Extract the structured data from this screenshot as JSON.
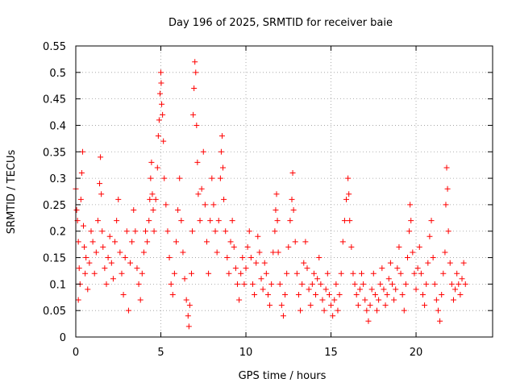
{
  "chart_data": {
    "type": "scatter",
    "title": "Day 196 of 2025, SRMTID for receiver baie",
    "xlabel": "GPS time / hours",
    "ylabel": "SRMTID / TECUs",
    "xlim": [
      0,
      24.5
    ],
    "ylim": [
      0,
      0.55
    ],
    "x_ticks": [
      0,
      5,
      10,
      15,
      20
    ],
    "y_ticks": [
      0,
      0.05,
      0.1,
      0.15,
      0.2,
      0.25,
      0.3,
      0.35,
      0.4,
      0.45,
      0.5,
      0.55
    ],
    "x_tick_labels": [
      "0",
      "5",
      "10",
      "15",
      "20"
    ],
    "y_tick_labels": [
      "0",
      "0.05",
      "0.1",
      "0.15",
      "0.2",
      "0.25",
      "0.3",
      "0.35",
      "0.4",
      "0.45",
      "0.5",
      "0.55"
    ],
    "grid": true,
    "marker": "+",
    "series": [
      {
        "name": "SRMTID",
        "color": "#ff0000",
        "points": [
          [
            0.0,
            0.28
          ],
          [
            0.05,
            0.24
          ],
          [
            0.1,
            0.22
          ],
          [
            0.15,
            0.07
          ],
          [
            0.15,
            0.18
          ],
          [
            0.2,
            0.13
          ],
          [
            0.25,
            0.1
          ],
          [
            0.3,
            0.26
          ],
          [
            0.35,
            0.31
          ],
          [
            0.4,
            0.35
          ],
          [
            0.45,
            0.21
          ],
          [
            0.5,
            0.17
          ],
          [
            0.55,
            0.12
          ],
          [
            0.6,
            0.15
          ],
          [
            0.7,
            0.09
          ],
          [
            0.8,
            0.14
          ],
          [
            0.9,
            0.2
          ],
          [
            1.0,
            0.18
          ],
          [
            1.1,
            0.12
          ],
          [
            1.2,
            0.16
          ],
          [
            1.3,
            0.22
          ],
          [
            1.4,
            0.29
          ],
          [
            1.45,
            0.34
          ],
          [
            1.5,
            0.27
          ],
          [
            1.55,
            0.2
          ],
          [
            1.6,
            0.17
          ],
          [
            1.7,
            0.13
          ],
          [
            1.8,
            0.1
          ],
          [
            1.9,
            0.15
          ],
          [
            2.0,
            0.19
          ],
          [
            2.1,
            0.14
          ],
          [
            2.2,
            0.11
          ],
          [
            2.3,
            0.18
          ],
          [
            2.4,
            0.22
          ],
          [
            2.5,
            0.26
          ],
          [
            2.6,
            0.16
          ],
          [
            2.7,
            0.12
          ],
          [
            2.8,
            0.08
          ],
          [
            2.9,
            0.15
          ],
          [
            3.0,
            0.2
          ],
          [
            3.1,
            0.05
          ],
          [
            3.2,
            0.14
          ],
          [
            3.3,
            0.18
          ],
          [
            3.4,
            0.24
          ],
          [
            3.5,
            0.2
          ],
          [
            3.6,
            0.13
          ],
          [
            3.7,
            0.1
          ],
          [
            3.8,
            0.07
          ],
          [
            3.9,
            0.12
          ],
          [
            4.0,
            0.16
          ],
          [
            4.1,
            0.2
          ],
          [
            4.2,
            0.18
          ],
          [
            4.3,
            0.22
          ],
          [
            4.35,
            0.26
          ],
          [
            4.4,
            0.3
          ],
          [
            4.45,
            0.33
          ],
          [
            4.5,
            0.27
          ],
          [
            4.55,
            0.24
          ],
          [
            4.6,
            0.2
          ],
          [
            4.7,
            0.26
          ],
          [
            4.8,
            0.32
          ],
          [
            4.85,
            0.38
          ],
          [
            4.9,
            0.41
          ],
          [
            4.95,
            0.46
          ],
          [
            5.0,
            0.5
          ],
          [
            5.02,
            0.48
          ],
          [
            5.05,
            0.44
          ],
          [
            5.1,
            0.42
          ],
          [
            5.15,
            0.37
          ],
          [
            5.2,
            0.3
          ],
          [
            5.3,
            0.25
          ],
          [
            5.4,
            0.2
          ],
          [
            5.5,
            0.15
          ],
          [
            5.6,
            0.1
          ],
          [
            5.7,
            0.08
          ],
          [
            5.8,
            0.12
          ],
          [
            5.9,
            0.18
          ],
          [
            6.0,
            0.24
          ],
          [
            6.1,
            0.3
          ],
          [
            6.2,
            0.22
          ],
          [
            6.3,
            0.16
          ],
          [
            6.4,
            0.11
          ],
          [
            6.5,
            0.07
          ],
          [
            6.6,
            0.04
          ],
          [
            6.65,
            0.02
          ],
          [
            6.7,
            0.06
          ],
          [
            6.8,
            0.12
          ],
          [
            6.85,
            0.2
          ],
          [
            6.9,
            0.42
          ],
          [
            6.95,
            0.47
          ],
          [
            7.0,
            0.52
          ],
          [
            7.05,
            0.5
          ],
          [
            7.1,
            0.4
          ],
          [
            7.15,
            0.33
          ],
          [
            7.2,
            0.27
          ],
          [
            7.3,
            0.22
          ],
          [
            7.4,
            0.28
          ],
          [
            7.5,
            0.35
          ],
          [
            7.6,
            0.25
          ],
          [
            7.7,
            0.18
          ],
          [
            7.8,
            0.12
          ],
          [
            7.9,
            0.22
          ],
          [
            8.0,
            0.3
          ],
          [
            8.1,
            0.25
          ],
          [
            8.2,
            0.2
          ],
          [
            8.3,
            0.16
          ],
          [
            8.4,
            0.22
          ],
          [
            8.5,
            0.3
          ],
          [
            8.55,
            0.35
          ],
          [
            8.6,
            0.38
          ],
          [
            8.65,
            0.32
          ],
          [
            8.7,
            0.26
          ],
          [
            8.8,
            0.2
          ],
          [
            8.9,
            0.15
          ],
          [
            9.0,
            0.12
          ],
          [
            9.1,
            0.18
          ],
          [
            9.2,
            0.22
          ],
          [
            9.3,
            0.17
          ],
          [
            9.4,
            0.13
          ],
          [
            9.5,
            0.1
          ],
          [
            9.6,
            0.07
          ],
          [
            9.7,
            0.12
          ],
          [
            9.8,
            0.15
          ],
          [
            9.9,
            0.1
          ],
          [
            10.0,
            0.13
          ],
          [
            10.1,
            0.17
          ],
          [
            10.2,
            0.2
          ],
          [
            10.3,
            0.15
          ],
          [
            10.4,
            0.1
          ],
          [
            10.5,
            0.08
          ],
          [
            10.6,
            0.14
          ],
          [
            10.7,
            0.19
          ],
          [
            10.8,
            0.16
          ],
          [
            10.9,
            0.11
          ],
          [
            11.0,
            0.09
          ],
          [
            11.1,
            0.14
          ],
          [
            11.2,
            0.12
          ],
          [
            11.3,
            0.08
          ],
          [
            11.4,
            0.06
          ],
          [
            11.5,
            0.1
          ],
          [
            11.6,
            0.16
          ],
          [
            11.7,
            0.2
          ],
          [
            11.75,
            0.24
          ],
          [
            11.8,
            0.27
          ],
          [
            11.85,
            0.22
          ],
          [
            11.9,
            0.16
          ],
          [
            12.0,
            0.1
          ],
          [
            12.1,
            0.06
          ],
          [
            12.2,
            0.04
          ],
          [
            12.3,
            0.08
          ],
          [
            12.4,
            0.12
          ],
          [
            12.5,
            0.17
          ],
          [
            12.6,
            0.22
          ],
          [
            12.7,
            0.26
          ],
          [
            12.75,
            0.31
          ],
          [
            12.8,
            0.24
          ],
          [
            12.9,
            0.18
          ],
          [
            13.0,
            0.12
          ],
          [
            13.1,
            0.08
          ],
          [
            13.2,
            0.05
          ],
          [
            13.3,
            0.1
          ],
          [
            13.4,
            0.14
          ],
          [
            13.5,
            0.18
          ],
          [
            13.6,
            0.13
          ],
          [
            13.7,
            0.09
          ],
          [
            13.8,
            0.06
          ],
          [
            13.9,
            0.1
          ],
          [
            14.0,
            0.12
          ],
          [
            14.1,
            0.08
          ],
          [
            14.2,
            0.11
          ],
          [
            14.3,
            0.15
          ],
          [
            14.4,
            0.1
          ],
          [
            14.5,
            0.07
          ],
          [
            14.6,
            0.05
          ],
          [
            14.7,
            0.09
          ],
          [
            14.8,
            0.12
          ],
          [
            14.9,
            0.08
          ],
          [
            15.0,
            0.06
          ],
          [
            15.1,
            0.04
          ],
          [
            15.2,
            0.07
          ],
          [
            15.3,
            0.1
          ],
          [
            15.4,
            0.05
          ],
          [
            15.5,
            0.08
          ],
          [
            15.6,
            0.12
          ],
          [
            15.7,
            0.18
          ],
          [
            15.8,
            0.22
          ],
          [
            15.9,
            0.26
          ],
          [
            16.0,
            0.3
          ],
          [
            16.05,
            0.27
          ],
          [
            16.1,
            0.22
          ],
          [
            16.2,
            0.17
          ],
          [
            16.3,
            0.12
          ],
          [
            16.4,
            0.1
          ],
          [
            16.5,
            0.08
          ],
          [
            16.6,
            0.06
          ],
          [
            16.7,
            0.09
          ],
          [
            16.8,
            0.12
          ],
          [
            16.9,
            0.1
          ],
          [
            17.0,
            0.07
          ],
          [
            17.1,
            0.05
          ],
          [
            17.2,
            0.03
          ],
          [
            17.3,
            0.06
          ],
          [
            17.4,
            0.09
          ],
          [
            17.5,
            0.12
          ],
          [
            17.6,
            0.08
          ],
          [
            17.7,
            0.05
          ],
          [
            17.8,
            0.07
          ],
          [
            17.9,
            0.1
          ],
          [
            18.0,
            0.13
          ],
          [
            18.1,
            0.09
          ],
          [
            18.2,
            0.06
          ],
          [
            18.3,
            0.08
          ],
          [
            18.4,
            0.11
          ],
          [
            18.5,
            0.14
          ],
          [
            18.6,
            0.1
          ],
          [
            18.7,
            0.07
          ],
          [
            18.8,
            0.09
          ],
          [
            18.9,
            0.13
          ],
          [
            19.0,
            0.17
          ],
          [
            19.1,
            0.12
          ],
          [
            19.2,
            0.08
          ],
          [
            19.3,
            0.05
          ],
          [
            19.4,
            0.1
          ],
          [
            19.5,
            0.15
          ],
          [
            19.6,
            0.2
          ],
          [
            19.65,
            0.25
          ],
          [
            19.7,
            0.22
          ],
          [
            19.8,
            0.16
          ],
          [
            19.9,
            0.12
          ],
          [
            20.0,
            0.09
          ],
          [
            20.1,
            0.13
          ],
          [
            20.2,
            0.17
          ],
          [
            20.3,
            0.12
          ],
          [
            20.4,
            0.08
          ],
          [
            20.5,
            0.06
          ],
          [
            20.6,
            0.1
          ],
          [
            20.7,
            0.14
          ],
          [
            20.8,
            0.19
          ],
          [
            20.9,
            0.22
          ],
          [
            21.0,
            0.15
          ],
          [
            21.1,
            0.1
          ],
          [
            21.2,
            0.07
          ],
          [
            21.3,
            0.05
          ],
          [
            21.4,
            0.03
          ],
          [
            21.5,
            0.08
          ],
          [
            21.6,
            0.12
          ],
          [
            21.7,
            0.16
          ],
          [
            21.75,
            0.25
          ],
          [
            21.8,
            0.32
          ],
          [
            21.85,
            0.28
          ],
          [
            21.9,
            0.2
          ],
          [
            22.0,
            0.14
          ],
          [
            22.1,
            0.1
          ],
          [
            22.2,
            0.07
          ],
          [
            22.3,
            0.09
          ],
          [
            22.4,
            0.12
          ],
          [
            22.5,
            0.1
          ],
          [
            22.6,
            0.08
          ],
          [
            22.7,
            0.11
          ],
          [
            22.8,
            0.14
          ],
          [
            22.9,
            0.1
          ]
        ]
      }
    ]
  }
}
